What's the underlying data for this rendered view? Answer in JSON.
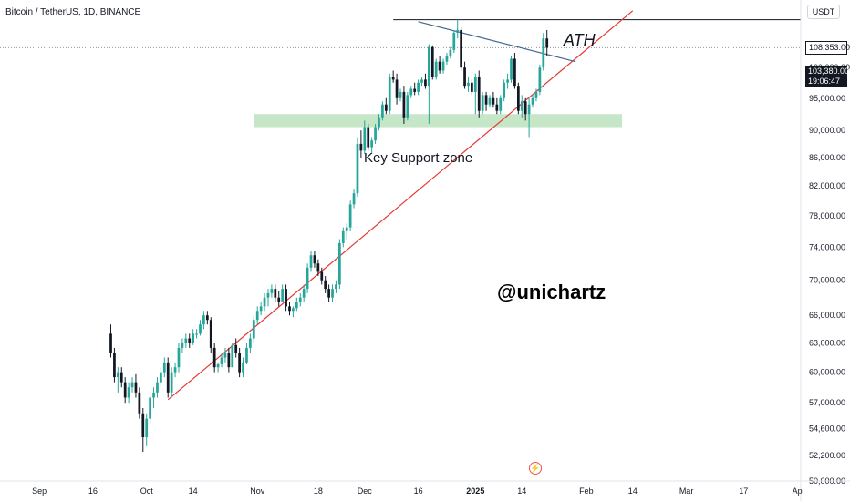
{
  "header": {
    "symbol_line": "Bitcoin / TetherUS, 1D, BINANCE",
    "currency": "USDT"
  },
  "annotations": {
    "ath_label": "ATH",
    "support_label": "Key Support zone",
    "watermark": "@unichartz"
  },
  "price_tags": {
    "ath": "108,353.00",
    "last": "103,380.00",
    "countdown": "19:06:47"
  },
  "colors": {
    "up": "#26a69a",
    "down": "#131722",
    "trendline_up": "#e53935",
    "trendline_down": "#42688f",
    "support_zone": "#b2dfb5",
    "ath_line": "#131722"
  },
  "chart_data": {
    "type": "candlestick",
    "symbol": "BTCUSDT",
    "interval": "1D",
    "ylim": [
      50000,
      112000
    ],
    "y_scale": "log",
    "y_ticks": [
      "50,000.00",
      "52,200.00",
      "54,600.00",
      "57,000.00",
      "60,000.00",
      "63,000.00",
      "66,000.00",
      "70,000.00",
      "74,000.00",
      "78,000.00",
      "82,000.00",
      "86,000.00",
      "90,000.00",
      "95,000.00",
      "100,000.00"
    ],
    "x_ticks": [
      {
        "label": "Sep",
        "date": "2024-09-01"
      },
      {
        "label": "16",
        "date": "2024-09-16"
      },
      {
        "label": "Oct",
        "date": "2024-10-01"
      },
      {
        "label": "14",
        "date": "2024-10-14"
      },
      {
        "label": "Nov",
        "date": "2024-11-01"
      },
      {
        "label": "18",
        "date": "2024-11-18"
      },
      {
        "label": "Dec",
        "date": "2024-12-01"
      },
      {
        "label": "16",
        "date": "2024-12-16"
      },
      {
        "label": "2025",
        "date": "2025-01-01"
      },
      {
        "label": "14",
        "date": "2025-01-14"
      },
      {
        "label": "Feb",
        "date": "2025-02-01"
      },
      {
        "label": "14",
        "date": "2025-02-14"
      },
      {
        "label": "Mar",
        "date": "2025-03-01"
      },
      {
        "label": "17",
        "date": "2025-03-17"
      },
      {
        "label": "Ap",
        "date": "2025-04-01"
      }
    ],
    "x_range": [
      "2024-08-21",
      "2025-04-02"
    ],
    "candles": [
      [
        64000,
        65000,
        61500,
        62000
      ],
      [
        62000,
        62500,
        59000,
        59500
      ],
      [
        59500,
        60500,
        58000,
        60000
      ],
      [
        60000,
        60500,
        58500,
        59000
      ],
      [
        59000,
        59500,
        57000,
        57500
      ],
      [
        57500,
        59000,
        57000,
        58500
      ],
      [
        58500,
        59500,
        58000,
        59000
      ],
      [
        59000,
        59800,
        57500,
        58000
      ],
      [
        58000,
        58500,
        55500,
        56000
      ],
      [
        56000,
        56500,
        52500,
        53800
      ],
      [
        53800,
        56000,
        53000,
        55500
      ],
      [
        55500,
        58000,
        55000,
        57500
      ],
      [
        57500,
        58500,
        56500,
        58000
      ],
      [
        58000,
        59500,
        57500,
        59000
      ],
      [
        59000,
        60500,
        58500,
        60000
      ],
      [
        60000,
        61500,
        59500,
        61000
      ],
      [
        61000,
        61500,
        57500,
        58000
      ],
      [
        58000,
        60500,
        57500,
        60000
      ],
      [
        60000,
        61000,
        59500,
        60500
      ],
      [
        60500,
        63000,
        60000,
        62500
      ],
      [
        62500,
        63500,
        62000,
        63000
      ],
      [
        63000,
        64000,
        62500,
        63500
      ],
      [
        63500,
        64000,
        62500,
        63000
      ],
      [
        63000,
        64500,
        62800,
        64000
      ],
      [
        64000,
        64500,
        63500,
        64000
      ],
      [
        64000,
        65500,
        63800,
        65000
      ],
      [
        65000,
        66500,
        64500,
        66000
      ],
      [
        66000,
        66500,
        65000,
        65500
      ],
      [
        65500,
        65800,
        62000,
        62500
      ],
      [
        62500,
        63000,
        60000,
        60500
      ],
      [
        60500,
        61000,
        60000,
        60800
      ],
      [
        60800,
        62000,
        60500,
        61500
      ],
      [
        61500,
        62500,
        61000,
        62000
      ],
      [
        62000,
        62500,
        60000,
        60500
      ],
      [
        60500,
        63000,
        60500,
        62800
      ],
      [
        62800,
        63500,
        61500,
        62000
      ],
      [
        62000,
        62500,
        59500,
        60000
      ],
      [
        60000,
        61500,
        59500,
        61000
      ],
      [
        61000,
        63000,
        60800,
        62500
      ],
      [
        62500,
        64000,
        62000,
        63500
      ],
      [
        63500,
        66000,
        63000,
        65500
      ],
      [
        65500,
        67000,
        65000,
        66500
      ],
      [
        66500,
        67500,
        66000,
        67000
      ],
      [
        67000,
        68500,
        66500,
        68000
      ],
      [
        68000,
        69000,
        67000,
        68500
      ],
      [
        68500,
        69500,
        68000,
        69000
      ],
      [
        69000,
        69500,
        67500,
        68000
      ],
      [
        68000,
        68800,
        67000,
        67500
      ],
      [
        67500,
        69500,
        67500,
        69000
      ],
      [
        69000,
        69500,
        66500,
        67000
      ],
      [
        67000,
        67500,
        66000,
        66500
      ],
      [
        66500,
        67000,
        65800,
        66800
      ],
      [
        66800,
        68000,
        66500,
        67500
      ],
      [
        67500,
        68500,
        67000,
        68000
      ],
      [
        68000,
        69500,
        67500,
        69000
      ],
      [
        69000,
        72000,
        68500,
        71500
      ],
      [
        71500,
        73500,
        71000,
        73000
      ],
      [
        73000,
        73500,
        71500,
        72000
      ],
      [
        72000,
        72500,
        70500,
        71000
      ],
      [
        71000,
        71500,
        69500,
        70000
      ],
      [
        70000,
        70500,
        68500,
        69000
      ],
      [
        69000,
        69500,
        67500,
        68000
      ],
      [
        68000,
        69500,
        67500,
        69000
      ],
      [
        69000,
        70000,
        68500,
        69500
      ],
      [
        69500,
        75000,
        69000,
        74500
      ],
      [
        74500,
        76500,
        74000,
        76000
      ],
      [
        76000,
        77000,
        75000,
        76500
      ],
      [
        76500,
        80000,
        76000,
        79500
      ],
      [
        79500,
        81500,
        79000,
        81000
      ],
      [
        81000,
        89000,
        80500,
        88000
      ],
      [
        88000,
        90000,
        86000,
        87000
      ],
      [
        87000,
        91500,
        86500,
        90500
      ],
      [
        90500,
        91000,
        87000,
        87500
      ],
      [
        87500,
        89000,
        86500,
        88500
      ],
      [
        88500,
        91000,
        88000,
        90500
      ],
      [
        90500,
        92500,
        90000,
        92000
      ],
      [
        92000,
        94500,
        91500,
        94000
      ],
      [
        94000,
        95000,
        92500,
        93000
      ],
      [
        93000,
        99000,
        92500,
        98500
      ],
      [
        98500,
        99500,
        97500,
        98000
      ],
      [
        98000,
        99000,
        94000,
        95000
      ],
      [
        95000,
        96500,
        94500,
        96000
      ],
      [
        96000,
        97000,
        91000,
        92000
      ],
      [
        92000,
        96000,
        91500,
        95500
      ],
      [
        95500,
        97000,
        95000,
        96500
      ],
      [
        96500,
        97500,
        95500,
        96000
      ],
      [
        96000,
        98000,
        95500,
        97500
      ],
      [
        97500,
        98500,
        97000,
        98000
      ],
      [
        98000,
        99000,
        96500,
        97000
      ],
      [
        97000,
        104000,
        91000,
        103500
      ],
      [
        103500,
        103800,
        98000,
        98500
      ],
      [
        98500,
        101500,
        98000,
        101000
      ],
      [
        101000,
        102000,
        99000,
        99500
      ],
      [
        99500,
        101500,
        99000,
        101000
      ],
      [
        101000,
        102500,
        100500,
        102000
      ],
      [
        102000,
        103500,
        101500,
        103000
      ],
      [
        103000,
        106500,
        102500,
        106000
      ],
      [
        106000,
        108353,
        105000,
        106500
      ],
      [
        106500,
        107000,
        99500,
        100000
      ],
      [
        100000,
        101000,
        96500,
        97000
      ],
      [
        97000,
        98500,
        96000,
        97500
      ],
      [
        97500,
        98000,
        95500,
        96000
      ],
      [
        96000,
        99000,
        92500,
        98500
      ],
      [
        98500,
        99500,
        92000,
        93000
      ],
      [
        93000,
        96000,
        92500,
        95500
      ],
      [
        95500,
        96000,
        93000,
        94000
      ],
      [
        94000,
        95500,
        93500,
        95000
      ],
      [
        95000,
        96000,
        93500,
        94000
      ],
      [
        94000,
        95000,
        92500,
        93000
      ],
      [
        93000,
        95500,
        92500,
        95000
      ],
      [
        95000,
        98000,
        94500,
        97500
      ],
      [
        97500,
        99000,
        96500,
        98000
      ],
      [
        98000,
        102000,
        97500,
        101500
      ],
      [
        101500,
        102500,
        96500,
        97000
      ],
      [
        97000,
        97500,
        92500,
        93000
      ],
      [
        93000,
        95500,
        92000,
        94500
      ],
      [
        94500,
        95000,
        91500,
        92500
      ],
      [
        92500,
        95000,
        89000,
        94000
      ],
      [
        94000,
        95500,
        93500,
        95000
      ],
      [
        95000,
        96500,
        94500,
        96000
      ],
      [
        96000,
        100500,
        95500,
        100000
      ],
      [
        100000,
        106000,
        99500,
        105000
      ],
      [
        105000,
        106500,
        102000,
        103380
      ]
    ],
    "support_zone": [
      90500,
      92500
    ],
    "ath": 108353,
    "last_price": 103380,
    "lines": [
      {
        "name": "ascending support",
        "from": [
          "2024-10-07",
          57300
        ],
        "to": [
          "2025-02-14",
          110000
        ]
      },
      {
        "name": "descending resistance",
        "from": [
          "2024-12-16",
          108000
        ],
        "to": [
          "2025-01-29",
          101000
        ]
      }
    ]
  }
}
